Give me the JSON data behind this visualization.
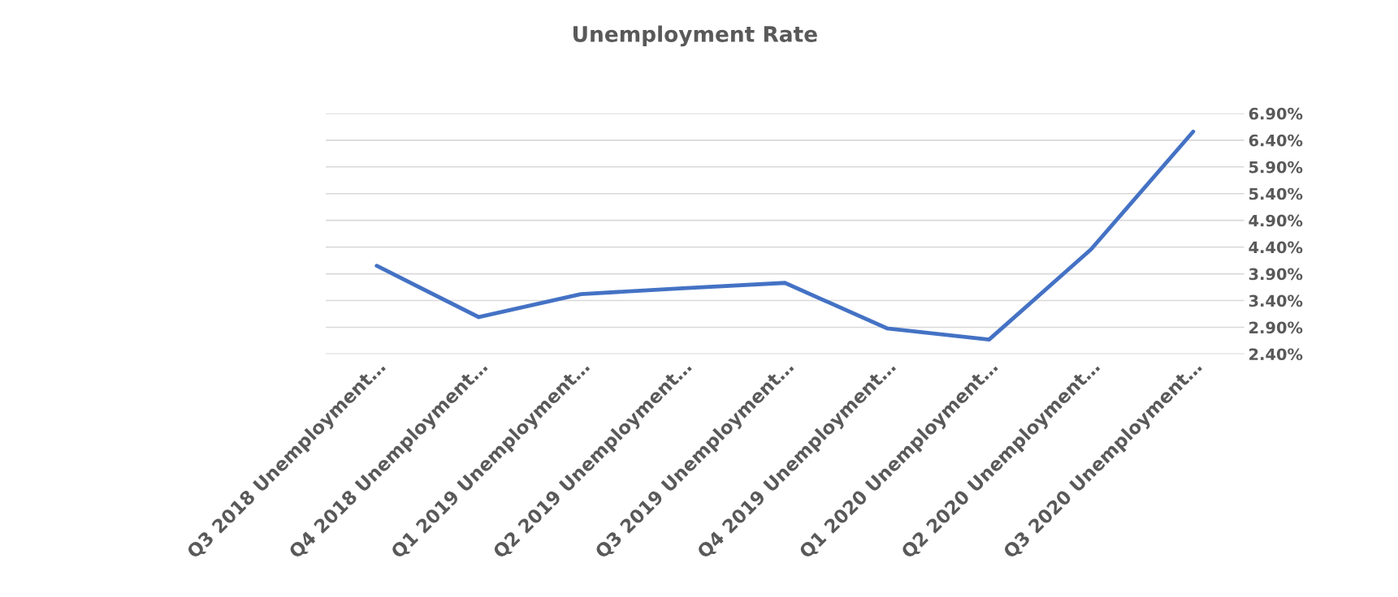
{
  "chart_data": {
    "type": "line",
    "title": "Unemployment Rate",
    "categories": [
      "Q3 2018 Unemployment…",
      "Q4 2018 Unemployment…",
      "Q1 2019 Unemployment…",
      "Q2 2019 Unemployment…",
      "Q3 2019 Unemployment…",
      "Q4 2019 Unemployment…",
      "Q1 2020 Unemployment…",
      "Q2 2020 Unemployment…",
      "Q3 2020 Unemployment…"
    ],
    "series": [
      {
        "color": "#4472c4",
        "values": [
          4.05,
          3.09,
          3.52,
          3.63,
          3.73,
          2.88,
          2.67,
          4.36,
          6.56
        ]
      }
    ],
    "ylim": [
      2.4,
      6.9
    ],
    "yticks": [
      {
        "value": 2.4,
        "label": "2.40%"
      },
      {
        "value": 2.9,
        "label": "2.90%"
      },
      {
        "value": 3.4,
        "label": "3.40%"
      },
      {
        "value": 3.9,
        "label": "3.90%"
      },
      {
        "value": 4.4,
        "label": "4.40%"
      },
      {
        "value": 4.9,
        "label": "4.90%"
      },
      {
        "value": 5.4,
        "label": "5.40%"
      },
      {
        "value": 5.9,
        "label": "5.90%"
      },
      {
        "value": 6.4,
        "label": "6.40%"
      },
      {
        "value": 6.9,
        "label": "6.90%"
      }
    ],
    "grid": "y",
    "marker": "none",
    "line_style": "solid"
  }
}
